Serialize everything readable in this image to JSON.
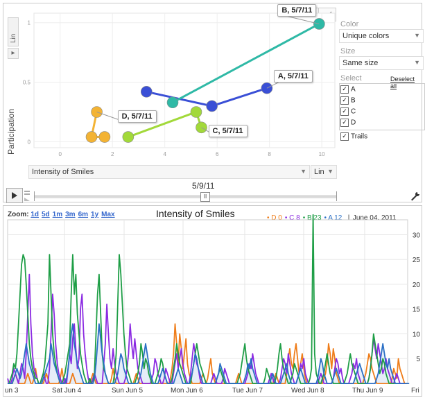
{
  "motion_chart": {
    "side_tabs": {
      "scale_label": "Lin"
    },
    "y_axis": {
      "label": "Participation",
      "ticks": [
        "1",
        "0.5",
        "0"
      ]
    },
    "x_axis": {
      "ticks": [
        "0",
        "2",
        "4",
        "6",
        "8",
        "10"
      ],
      "selector": "Intensity of Smiles",
      "scale": "Lin"
    },
    "view_icons": [
      "bubble-view-icon",
      "bar-view-icon",
      "line-view-icon"
    ],
    "controls": {
      "color_label": "Color",
      "color_value": "Unique colors",
      "size_label": "Size",
      "size_value": "Same size",
      "select_label": "Select",
      "deselect_all": "Deselect all",
      "items": [
        {
          "label": "A",
          "checked": true
        },
        {
          "label": "B",
          "checked": true
        },
        {
          "label": "C",
          "checked": true
        },
        {
          "label": "D",
          "checked": true
        }
      ],
      "trails_label": "Trails",
      "trails_checked": true
    },
    "time_label": "5/9/11",
    "colors": {
      "A": "#3a4fd6",
      "B": "#2fb9a6",
      "C": "#a2d93a",
      "D": "#f3b334"
    },
    "chart_data": {
      "type": "scatter",
      "x_range": [
        -1,
        10.5
      ],
      "y_range": [
        -0.05,
        1.08
      ],
      "series": [
        {
          "name": "A, 5/7/11",
          "color": "#3a4fd6",
          "points": [
            [
              3.3,
              0.42
            ],
            [
              5.8,
              0.3
            ],
            [
              7.9,
              0.45
            ]
          ],
          "label_at": 2
        },
        {
          "name": "B, 5/7/11",
          "color": "#2fb9a6",
          "points": [
            [
              4.3,
              0.33
            ],
            [
              9.9,
              0.99
            ]
          ],
          "label_at": 1
        },
        {
          "name": "C, 5/7/11",
          "color": "#a2d93a",
          "points": [
            [
              2.6,
              0.04
            ],
            [
              5.2,
              0.25
            ],
            [
              5.4,
              0.12
            ]
          ],
          "label_at": 2
        },
        {
          "name": "D, 5/7/11",
          "color": "#f3b334",
          "points": [
            [
              1.4,
              0.25
            ],
            [
              1.2,
              0.04
            ],
            [
              1.7,
              0.04
            ]
          ],
          "label_at": 0
        }
      ]
    }
  },
  "annotated_chart": {
    "zoom_label": "Zoom:",
    "zoom_options": [
      "1d",
      "5d",
      "1m",
      "3m",
      "6m",
      "1y",
      "Max"
    ],
    "title": "Intensity of Smiles",
    "legend": [
      {
        "text": "• D 0",
        "color": "#ef7d1a"
      },
      {
        "text": "• C 8",
        "color": "#8b2be2"
      },
      {
        "text": "• B 23",
        "color": "#1e9e46"
      },
      {
        "text": "• A 12",
        "color": "#2a6fc5"
      }
    ],
    "date": "June 04, 2011",
    "y_ticks": [
      "30",
      "25",
      "20",
      "15",
      "10",
      "5"
    ],
    "x_ticks": [
      "un 3",
      "Sat Jun 4",
      "Sun Jun 5",
      "Mon Jun 6",
      "Tue Jun 7",
      "Wed Jun 8",
      "Thu Jun 9",
      "Fri"
    ],
    "chart_data": {
      "type": "line",
      "y_range": [
        0,
        33
      ],
      "series": [
        {
          "name": "D",
          "color": "#ef7d1a",
          "values": [
            0,
            0,
            0,
            0,
            1,
            2,
            1,
            0,
            0,
            0,
            0,
            0,
            1,
            2,
            1,
            0,
            0,
            1,
            3,
            1,
            0,
            0,
            0,
            0,
            1,
            2,
            1,
            0,
            0,
            0,
            0,
            0,
            0,
            0,
            1,
            3,
            1,
            0,
            0,
            0,
            0,
            1,
            2,
            1,
            0,
            0,
            0,
            0,
            0,
            0,
            0,
            0,
            0,
            0,
            1,
            2,
            1,
            0,
            0,
            0,
            0,
            0,
            0,
            0,
            0,
            0,
            0,
            1,
            3,
            1,
            0,
            0,
            0,
            0,
            0,
            0,
            0,
            0,
            0,
            0,
            0,
            0,
            1,
            2,
            1,
            0,
            0,
            0,
            0,
            0,
            0,
            0,
            0,
            0,
            0,
            0,
            0,
            0,
            0,
            0,
            0,
            0,
            0,
            0,
            0,
            1,
            3,
            6,
            12,
            8,
            4,
            10,
            7,
            3,
            6,
            9,
            4,
            2,
            1,
            0,
            0,
            0,
            0,
            0,
            0,
            1,
            2,
            1,
            0,
            1,
            3,
            5,
            2,
            1,
            0,
            0,
            0,
            0,
            0,
            0,
            0,
            0,
            0,
            0,
            0,
            0,
            0,
            0,
            1,
            2,
            1,
            0,
            0,
            0,
            0,
            0,
            0,
            0,
            0,
            0,
            0,
            0,
            0,
            0,
            0,
            0,
            0,
            0,
            0,
            0,
            0,
            0,
            1,
            2,
            1,
            0,
            0,
            0,
            0,
            0,
            2,
            5,
            7,
            4,
            3,
            6,
            8,
            5,
            2,
            4,
            6,
            3,
            1,
            0,
            0,
            0,
            0,
            0,
            0,
            0,
            0,
            0,
            0,
            0,
            1,
            2,
            4,
            8,
            6,
            3,
            7,
            5,
            2,
            1,
            0,
            0,
            0,
            0,
            0,
            0,
            0,
            0,
            0,
            0,
            0,
            0,
            0,
            0,
            0,
            0,
            1,
            2,
            4,
            6,
            5,
            3,
            2,
            1,
            0,
            0,
            0,
            0,
            0,
            0,
            0,
            0,
            0,
            0,
            1,
            3,
            2,
            1,
            5,
            3,
            2,
            1,
            0,
            0,
            0
          ]
        },
        {
          "name": "C",
          "color": "#8b2be2",
          "values": [
            1,
            0,
            0,
            1,
            3,
            2,
            1,
            0,
            2,
            4,
            3,
            1,
            6,
            14,
            22,
            12,
            6,
            3,
            2,
            1,
            0,
            0,
            1,
            2,
            1,
            0,
            0,
            3,
            10,
            18,
            14,
            8,
            4,
            2,
            1,
            0,
            0,
            1,
            0,
            3,
            6,
            4,
            9,
            12,
            7,
            3,
            5,
            15,
            18,
            10,
            6,
            3,
            1,
            0,
            0,
            1,
            2,
            1,
            0,
            0,
            0,
            0,
            4,
            8,
            16,
            10,
            5,
            3,
            7,
            4,
            2,
            1,
            0,
            0,
            0,
            0,
            1,
            3,
            6,
            12,
            8,
            5,
            9,
            6,
            3,
            2,
            1,
            0,
            0,
            0,
            0,
            0,
            0,
            1,
            2,
            5,
            4,
            2,
            1,
            0,
            0,
            1,
            3,
            2,
            1,
            0,
            0,
            2,
            4,
            6,
            3,
            5,
            7,
            4,
            2,
            1,
            0,
            0,
            2,
            5,
            8,
            6,
            4,
            3,
            1,
            0,
            0,
            0,
            0,
            0,
            0,
            0,
            1,
            2,
            1,
            0,
            0,
            0,
            0,
            1,
            3,
            2,
            1,
            0,
            0,
            0,
            0,
            0,
            0,
            0,
            0,
            0,
            0,
            0,
            1,
            2,
            4,
            3,
            6,
            4,
            2,
            1,
            0,
            0,
            0,
            0,
            0,
            0,
            0,
            1,
            2,
            1,
            0,
            0,
            0,
            0,
            1,
            3,
            5,
            4,
            2,
            6,
            4,
            2,
            1,
            0,
            0,
            1,
            2,
            4,
            3,
            5,
            2,
            1,
            0,
            0,
            0,
            0,
            0,
            0,
            0,
            1,
            2,
            1,
            0,
            0,
            0,
            0,
            0,
            0,
            1,
            3,
            5,
            4,
            2,
            3,
            1,
            0,
            0,
            0,
            0,
            1,
            2,
            4,
            3,
            5,
            2,
            1,
            0,
            0,
            0,
            0,
            0,
            1,
            3,
            6,
            9,
            7,
            5,
            8,
            6,
            4,
            2,
            3,
            5,
            3,
            2,
            1,
            0,
            0,
            1,
            2,
            1,
            0,
            0,
            0,
            0
          ]
        },
        {
          "name": "B",
          "color": "#1e9e46",
          "values": [
            0,
            0,
            1,
            2,
            4,
            3,
            6,
            12,
            18,
            24,
            26,
            25,
            20,
            14,
            8,
            5,
            3,
            2,
            1,
            1,
            0,
            0,
            1,
            2,
            4,
            8,
            12,
            26,
            18,
            10,
            6,
            4,
            2,
            1,
            0,
            0,
            1,
            2,
            4,
            6,
            8,
            18,
            26,
            18,
            22,
            14,
            10,
            6,
            4,
            2,
            1,
            0,
            0,
            1,
            0,
            0,
            2,
            10,
            18,
            22,
            14,
            6,
            3,
            2,
            1,
            0,
            0,
            0,
            0,
            2,
            6,
            16,
            26,
            22,
            16,
            10,
            6,
            3,
            2,
            1,
            0,
            0,
            0,
            1,
            2,
            4,
            8,
            6,
            3,
            5,
            4,
            2,
            1,
            0,
            0,
            0,
            1,
            2,
            3,
            5,
            4,
            2,
            1,
            0,
            0,
            0,
            1,
            3,
            5,
            8,
            6,
            4,
            3,
            2,
            1,
            0,
            0,
            0,
            0,
            2,
            4,
            6,
            8,
            6,
            4,
            3,
            2,
            1,
            0,
            0,
            0,
            0,
            0,
            0,
            0,
            1,
            2,
            3,
            2,
            1,
            0,
            0,
            0,
            0,
            0,
            0,
            0,
            0,
            0,
            1,
            2,
            4,
            6,
            8,
            5,
            3,
            2,
            1,
            0,
            0,
            0,
            0,
            0,
            0,
            0,
            0,
            1,
            3,
            2,
            1,
            0,
            0,
            0,
            1,
            3,
            6,
            8,
            5,
            3,
            2,
            1,
            0,
            0,
            1,
            2,
            4,
            3,
            2,
            1,
            0,
            0,
            0,
            0,
            0,
            0,
            1,
            3,
            34,
            6,
            2,
            1,
            0,
            0,
            1,
            2,
            4,
            6,
            4,
            2,
            1,
            0,
            0,
            0,
            0,
            0,
            0,
            0,
            0,
            1,
            2,
            4,
            6,
            4,
            3,
            2,
            1,
            0,
            0,
            0,
            0,
            0,
            0,
            0,
            1,
            3,
            6,
            10,
            8,
            6,
            4,
            2,
            3,
            5,
            4,
            2,
            1,
            0,
            0,
            0,
            0,
            0,
            0,
            0,
            0
          ]
        },
        {
          "name": "A",
          "color": "#2a6fc5",
          "values": [
            0,
            0,
            0,
            0,
            1,
            2,
            3,
            2,
            1,
            2,
            4,
            6,
            8,
            6,
            4,
            3,
            2,
            1,
            0,
            0,
            0,
            0,
            0,
            1,
            2,
            3,
            4,
            5,
            8,
            6,
            4,
            3,
            2,
            1,
            0,
            0,
            0,
            0,
            1,
            3,
            6,
            10,
            12,
            8,
            6,
            4,
            3,
            2,
            1,
            0,
            0,
            0,
            0,
            0,
            0,
            0,
            1,
            4,
            8,
            12,
            9,
            6,
            4,
            2,
            1,
            0,
            0,
            0,
            0,
            0,
            1,
            2,
            4,
            6,
            5,
            3,
            2,
            1,
            0,
            0,
            0,
            0,
            0,
            0,
            0,
            1,
            2,
            4,
            6,
            8,
            6,
            4,
            2,
            1,
            0,
            0,
            0,
            0,
            1,
            2,
            3,
            2,
            1,
            0,
            0,
            0,
            0,
            0,
            1,
            2,
            3,
            2,
            1,
            0,
            0,
            0,
            0,
            0,
            1,
            2,
            4,
            6,
            5,
            3,
            2,
            1,
            0,
            0,
            0,
            0,
            0,
            0,
            0,
            0,
            0,
            1,
            2,
            4,
            3,
            2,
            1,
            0,
            0,
            0,
            0,
            0,
            0,
            0,
            0,
            0,
            0,
            0,
            0,
            1,
            2,
            4,
            3,
            5,
            3,
            2,
            1,
            0,
            0,
            0,
            0,
            0,
            0,
            0,
            0,
            0,
            1,
            2,
            1,
            0,
            0,
            0,
            0,
            1,
            2,
            3,
            4,
            2,
            1,
            0,
            0,
            0,
            0,
            1,
            2,
            3,
            2,
            1,
            0,
            0,
            0,
            0,
            0,
            0,
            0,
            0,
            1,
            3,
            5,
            4,
            2,
            1,
            0,
            0,
            0,
            0,
            1,
            2,
            3,
            2,
            1,
            0,
            0,
            0,
            0,
            0,
            0,
            0,
            0,
            0,
            1,
            2,
            3,
            4,
            3,
            2,
            1,
            0,
            0,
            0,
            0,
            0,
            0,
            0,
            1,
            2,
            4,
            6,
            8,
            6,
            4,
            3,
            5,
            3,
            2,
            1,
            0,
            0,
            0,
            0,
            0,
            0,
            0,
            0,
            0,
            0
          ]
        }
      ]
    }
  }
}
